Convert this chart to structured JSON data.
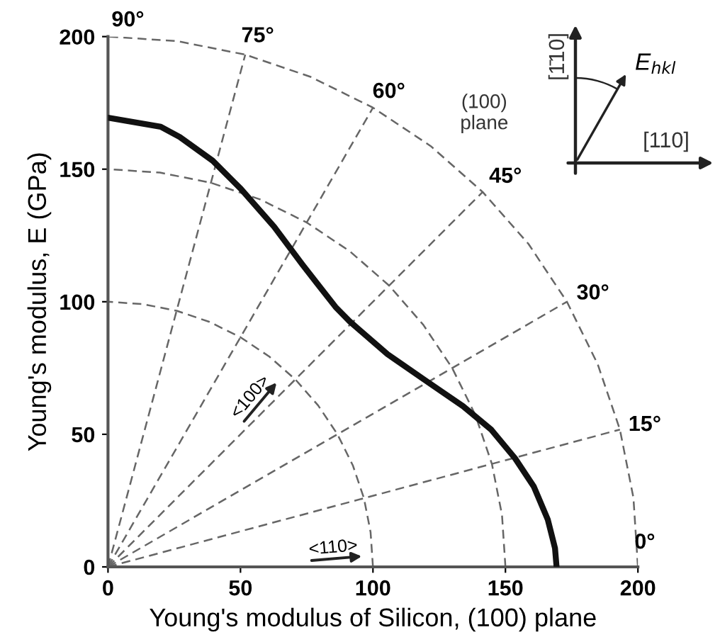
{
  "chart_data": {
    "type": "line",
    "xlabel": "Young's modulus of Silicon, (100) plane",
    "ylabel": "Young's modulus, E (GPa)",
    "xlim": [
      0,
      200
    ],
    "ylim": [
      0,
      200
    ],
    "xticks": [
      0,
      50,
      100,
      150,
      200
    ],
    "yticks": [
      0,
      50,
      100,
      150,
      200
    ],
    "grid": false,
    "marker": "none",
    "series": [
      {
        "color": "#111111",
        "line_style": "solid",
        "x": [
          0,
          19.9,
          27.1,
          39.5,
          50.2,
          62.7,
          73.4,
          79,
          85.9,
          91.2,
          105.5,
          119.7,
          134,
          144.7,
          153.6,
          160.7,
          166,
          168.7,
          169.3
        ],
        "values": [
          169.4,
          166,
          162.1,
          153.2,
          142.5,
          128.3,
          114,
          106.8,
          98,
          92.6,
          80.2,
          70.4,
          60.6,
          51.7,
          41,
          30.3,
          17.8,
          7.1,
          0
        ]
      },
      {
        "color": "#666666",
        "line_style": "dashed",
        "x": [
          100,
          99.1,
          96.6,
          92.4,
          86.6,
          79.3,
          70.7,
          60.9,
          50,
          38.3,
          25.9,
          13.1,
          0
        ],
        "values": [
          0,
          13.1,
          25.9,
          38.3,
          50,
          60.9,
          70.7,
          79.3,
          86.6,
          92.4,
          96.6,
          99.1,
          100
        ]
      },
      {
        "color": "#666666",
        "line_style": "dashed",
        "x": [
          150,
          148.7,
          144.9,
          138.6,
          129.9,
          119.0,
          106.1,
          91.3,
          75,
          57.4,
          38.8,
          19.6,
          0
        ],
        "values": [
          0,
          19.6,
          38.8,
          57.4,
          75,
          91.3,
          106.1,
          119.0,
          129.9,
          138.6,
          144.9,
          148.7,
          150
        ]
      },
      {
        "color": "#666666",
        "line_style": "dashed",
        "x": [
          200,
          198.3,
          193.2,
          184.8,
          173.2,
          158.7,
          141.4,
          121.8,
          100,
          76.5,
          51.8,
          26.1,
          0
        ],
        "values": [
          0,
          26.1,
          51.8,
          76.5,
          100,
          121.8,
          141.4,
          158.7,
          173.2,
          184.8,
          193.2,
          198.3,
          200
        ]
      },
      {
        "color": "#666666",
        "line_style": "dashed",
        "x": [
          0,
          193.2
        ],
        "values": [
          0,
          51.8
        ]
      },
      {
        "color": "#666666",
        "line_style": "dashed",
        "x": [
          0,
          173.2
        ],
        "values": [
          0,
          100
        ]
      },
      {
        "color": "#666666",
        "line_style": "dashed",
        "x": [
          0,
          141.4
        ],
        "values": [
          0,
          141.4
        ]
      },
      {
        "color": "#666666",
        "line_style": "dashed",
        "x": [
          0,
          100
        ],
        "values": [
          0,
          173.2
        ]
      },
      {
        "color": "#666666",
        "line_style": "dashed",
        "x": [
          0,
          51.8
        ],
        "values": [
          0,
          193.2
        ]
      }
    ],
    "annotations": [
      "90°",
      "75°",
      "60°",
      "45°",
      "30°",
      "15°",
      "0°",
      "<100>",
      "<110>",
      "(100)\nplane",
      "[1̄10]",
      "E$_{hkl}$",
      "[110]"
    ]
  }
}
